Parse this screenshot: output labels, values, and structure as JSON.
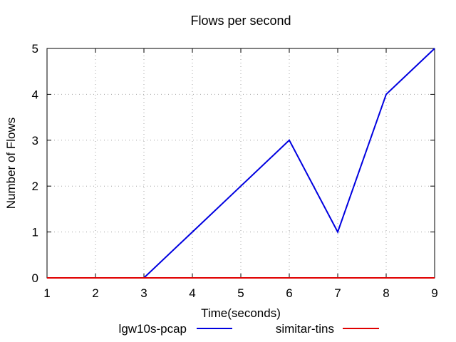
{
  "chart_data": {
    "type": "line",
    "title": "Flows per second",
    "xlabel": "Time(seconds)",
    "ylabel": "Number of Flows",
    "x": [
      1,
      2,
      3,
      4,
      5,
      6,
      7,
      8,
      9
    ],
    "xlim": [
      1,
      9
    ],
    "ylim": [
      0,
      5
    ],
    "xticks": [
      "1",
      "2",
      "3",
      "4",
      "5",
      "6",
      "7",
      "8",
      "9"
    ],
    "yticks": [
      "0",
      "1",
      "2",
      "3",
      "4",
      "5"
    ],
    "grid": true,
    "legend_position": "bottom",
    "series": [
      {
        "name": "lgw10s-pcap",
        "color": "#0000e0",
        "values": [
          0,
          0,
          0,
          1,
          2,
          3,
          1,
          4,
          5
        ]
      },
      {
        "name": "simitar-tins",
        "color": "#e00000",
        "values": [
          0,
          0,
          0,
          0,
          0,
          0,
          0,
          0,
          0
        ]
      }
    ]
  }
}
